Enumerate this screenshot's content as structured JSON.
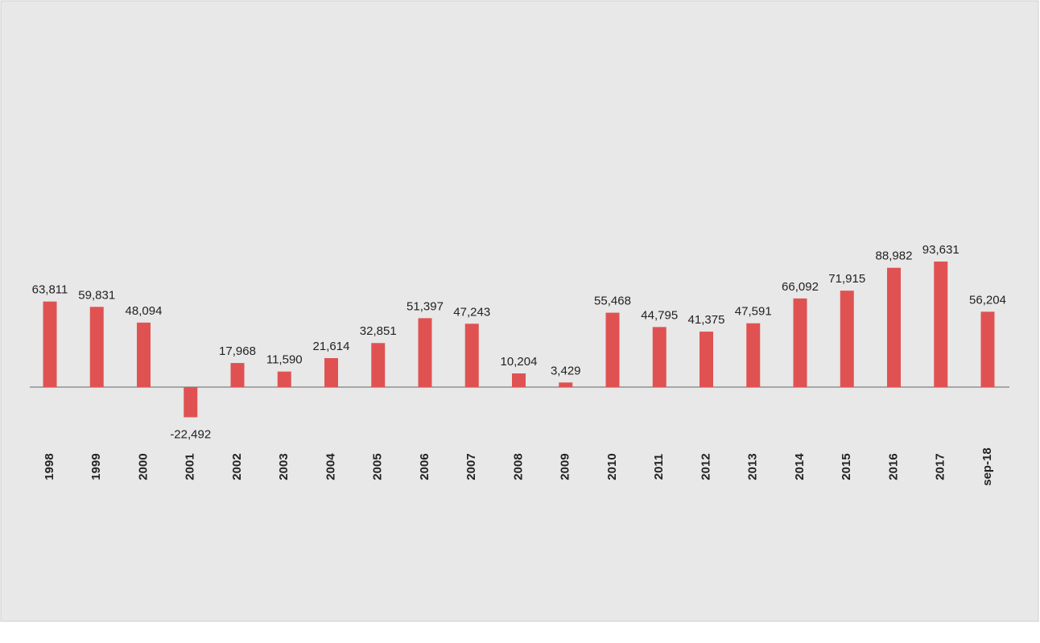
{
  "chart_data": {
    "type": "bar",
    "categories": [
      "1998",
      "1999",
      "2000",
      "2001",
      "2002",
      "2003",
      "2004",
      "2005",
      "2006",
      "2007",
      "2008",
      "2009",
      "2010",
      "2011",
      "2012",
      "2013",
      "2014",
      "2015",
      "2016",
      "2017",
      "sep-18"
    ],
    "values": [
      63811,
      59831,
      48094,
      -22492,
      17968,
      11590,
      21614,
      32851,
      51397,
      47243,
      10204,
      3429,
      55468,
      44795,
      41375,
      47591,
      66092,
      71915,
      88982,
      93631,
      56204
    ],
    "value_labels": [
      "63,811",
      "59,831",
      "48,094",
      "-22,492",
      "17,968",
      "11,590",
      "21,614",
      "32,851",
      "51,397",
      "47,243",
      "10,204",
      "3,429",
      "55,468",
      "44,795",
      "41,375",
      "47,591",
      "66,092",
      "71,915",
      "88,982",
      "93,631",
      "56,204"
    ],
    "color": "#e05252"
  }
}
